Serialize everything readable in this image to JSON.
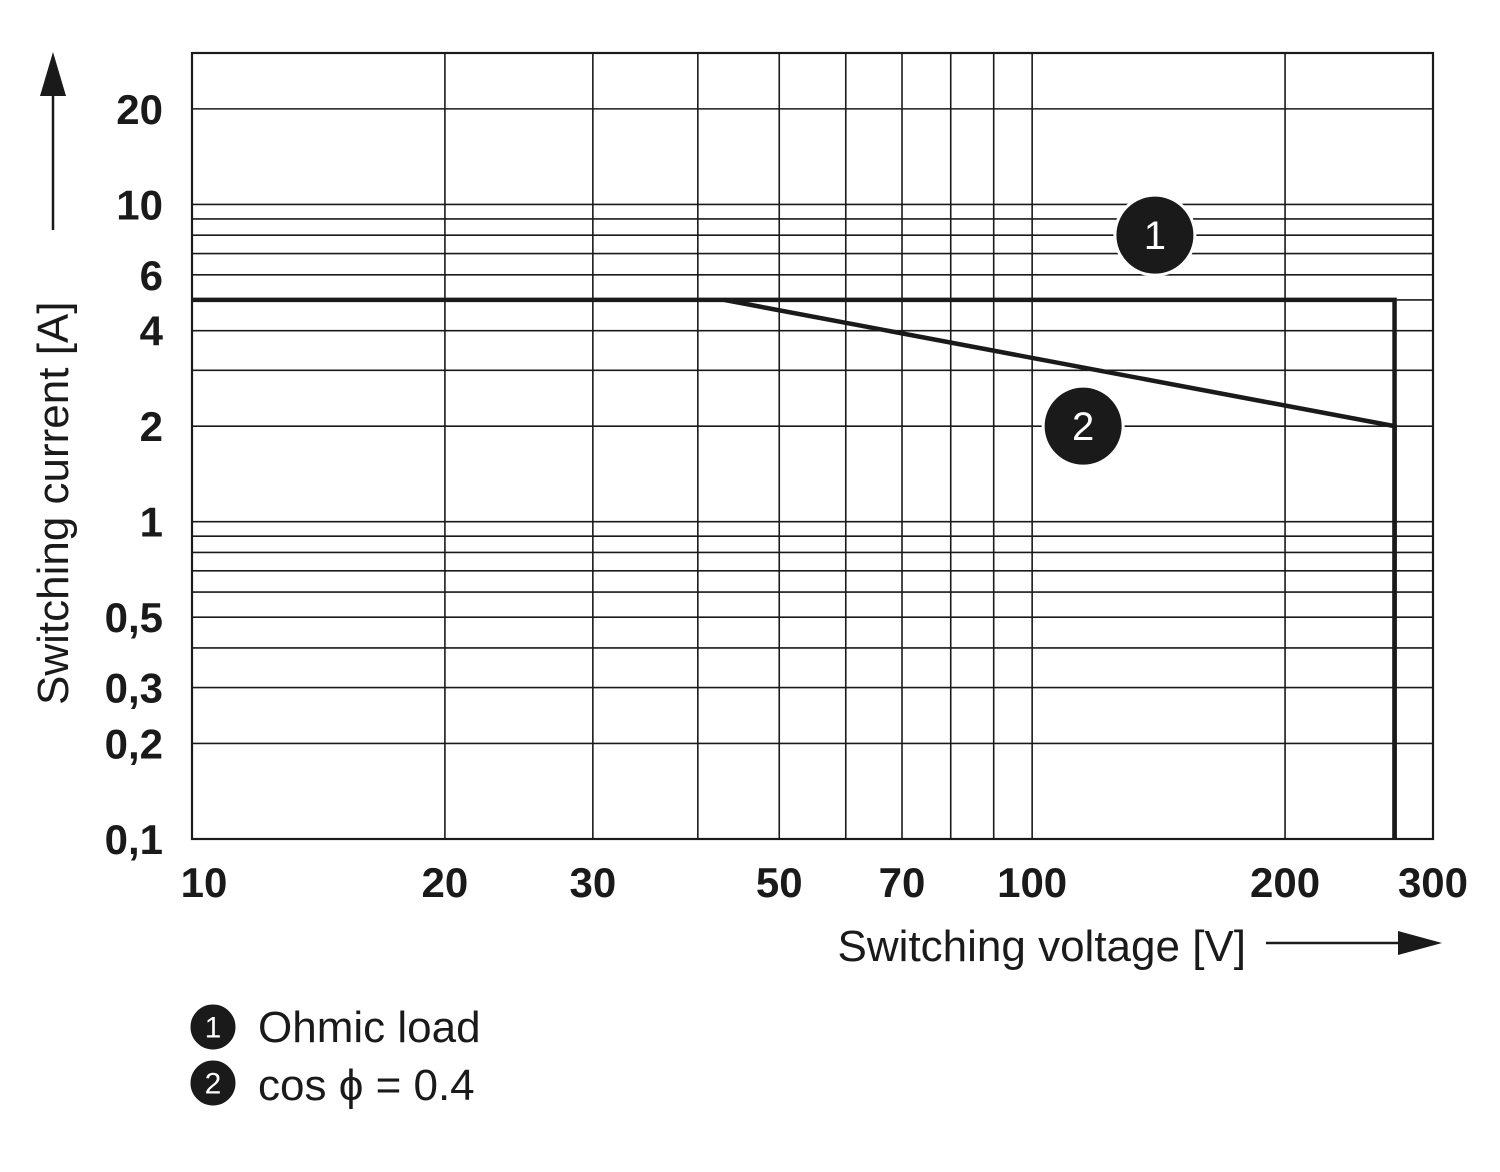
{
  "chart_data": {
    "type": "line",
    "xlabel": "Switching voltage [V]",
    "ylabel": "Switching current [A]",
    "x_scale": "log",
    "y_scale": "log",
    "xlim": [
      10,
      300
    ],
    "ylim": [
      0.1,
      30
    ],
    "grid": true,
    "x_ticks": [
      10,
      20,
      30,
      50,
      70,
      100,
      200,
      300
    ],
    "x_tick_labels": [
      "10",
      "20",
      "30",
      "50",
      "70",
      "100",
      "200",
      "300"
    ],
    "y_ticks": [
      0.1,
      0.2,
      0.3,
      0.5,
      1,
      2,
      4,
      6,
      10,
      20
    ],
    "y_tick_labels": [
      "0,1",
      "0,2",
      "0,3",
      "0,5",
      "1",
      "2",
      "4",
      "6",
      "10",
      "20"
    ],
    "x_grid": [
      10,
      20,
      30,
      40,
      50,
      60,
      70,
      80,
      90,
      100,
      200,
      300
    ],
    "y_grid": [
      0.2,
      0.3,
      0.4,
      0.5,
      0.6,
      0.7,
      0.8,
      0.9,
      1,
      2,
      3,
      4,
      5,
      6,
      7,
      8,
      9,
      10,
      20
    ],
    "series": [
      {
        "name": "Ohmic load",
        "marker": "1",
        "x": [
          10,
          270,
          270
        ],
        "y": [
          5,
          5,
          0.1
        ]
      },
      {
        "name": "cos ϕ = 0.4",
        "marker": "2",
        "x": [
          43,
          270,
          270
        ],
        "y": [
          5,
          2,
          0.1
        ]
      }
    ],
    "annotations": [
      {
        "text": "1",
        "x": 140,
        "y": 8
      },
      {
        "text": "2",
        "x": 115,
        "y": 2
      }
    ],
    "legend": {
      "placement": "bottom-left",
      "items": [
        {
          "marker": "1",
          "label": "Ohmic load"
        },
        {
          "marker": "2",
          "label": "cos ϕ = 0.4"
        }
      ]
    }
  },
  "colors": {
    "ink": "#1a1a1a",
    "background": "#ffffff"
  }
}
